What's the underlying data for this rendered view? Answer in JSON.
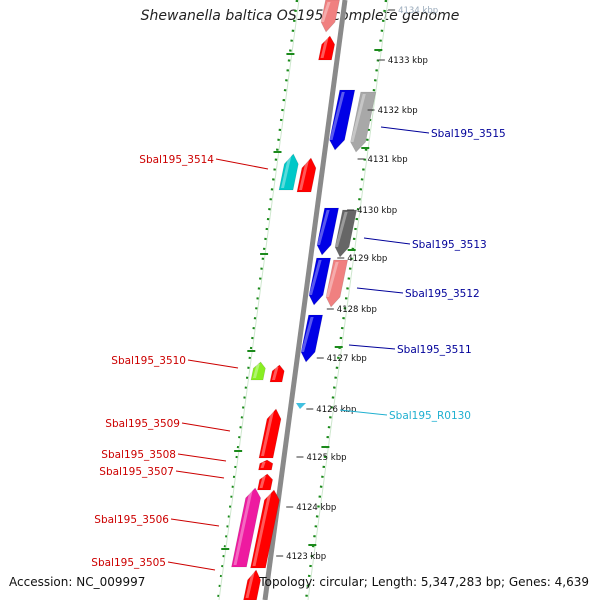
{
  "title": "Shewanella baltica OS195, complete genome",
  "footer": {
    "accession": "Accession: NC_009997",
    "topology": "Topology: circular; Length: 5,347,283 bp; Genes: 4,639"
  },
  "colors": {
    "red": "#ff0000",
    "blue": "#0000e6",
    "gray": "#a8a8a8",
    "darkgray": "#666666",
    "pink": "#f08080",
    "cyan": "#00c8c8",
    "lime": "#88ee22",
    "magenta": "#ee1aa0",
    "lightcyan": "#40c0e0",
    "spine": "#8a8a8a",
    "dots": "#1b8a1b",
    "label_red": "#cc0000",
    "label_blue": "#000099",
    "label_cyan": "#20b0d0"
  },
  "ticks": [
    "4134 kbp",
    "4133 kbp",
    "4132 kbp",
    "4131 kbp",
    "4130 kbp",
    "4129 kbp",
    "4128 kbp",
    "4127 kbp",
    "4126 kbp",
    "4125 kbp",
    "4124 kbp",
    "4123 kbp"
  ],
  "labels": [
    {
      "text": "Sbal195_3515",
      "color": "label_blue",
      "strand": "minus"
    },
    {
      "text": "Sbal195_3514",
      "color": "label_red",
      "strand": "plus"
    },
    {
      "text": "Sbal195_3513",
      "color": "label_blue",
      "strand": "minus"
    },
    {
      "text": "Sbal195_3512",
      "color": "label_blue",
      "strand": "minus"
    },
    {
      "text": "Sbal195_3511",
      "color": "label_blue",
      "strand": "minus"
    },
    {
      "text": "Sbal195_3510",
      "color": "label_red",
      "strand": "plus"
    },
    {
      "text": "Sbal195_R0130",
      "color": "label_cyan",
      "strand": "minus"
    },
    {
      "text": "Sbal195_3509",
      "color": "label_red",
      "strand": "plus"
    },
    {
      "text": "Sbal195_3508",
      "color": "label_red",
      "strand": "plus"
    },
    {
      "text": "Sbal195_3507",
      "color": "label_red",
      "strand": "plus"
    },
    {
      "text": "Sbal195_3506",
      "color": "label_red",
      "strand": "plus"
    },
    {
      "text": "Sbal195_3505",
      "color": "label_red",
      "strand": "plus"
    }
  ]
}
